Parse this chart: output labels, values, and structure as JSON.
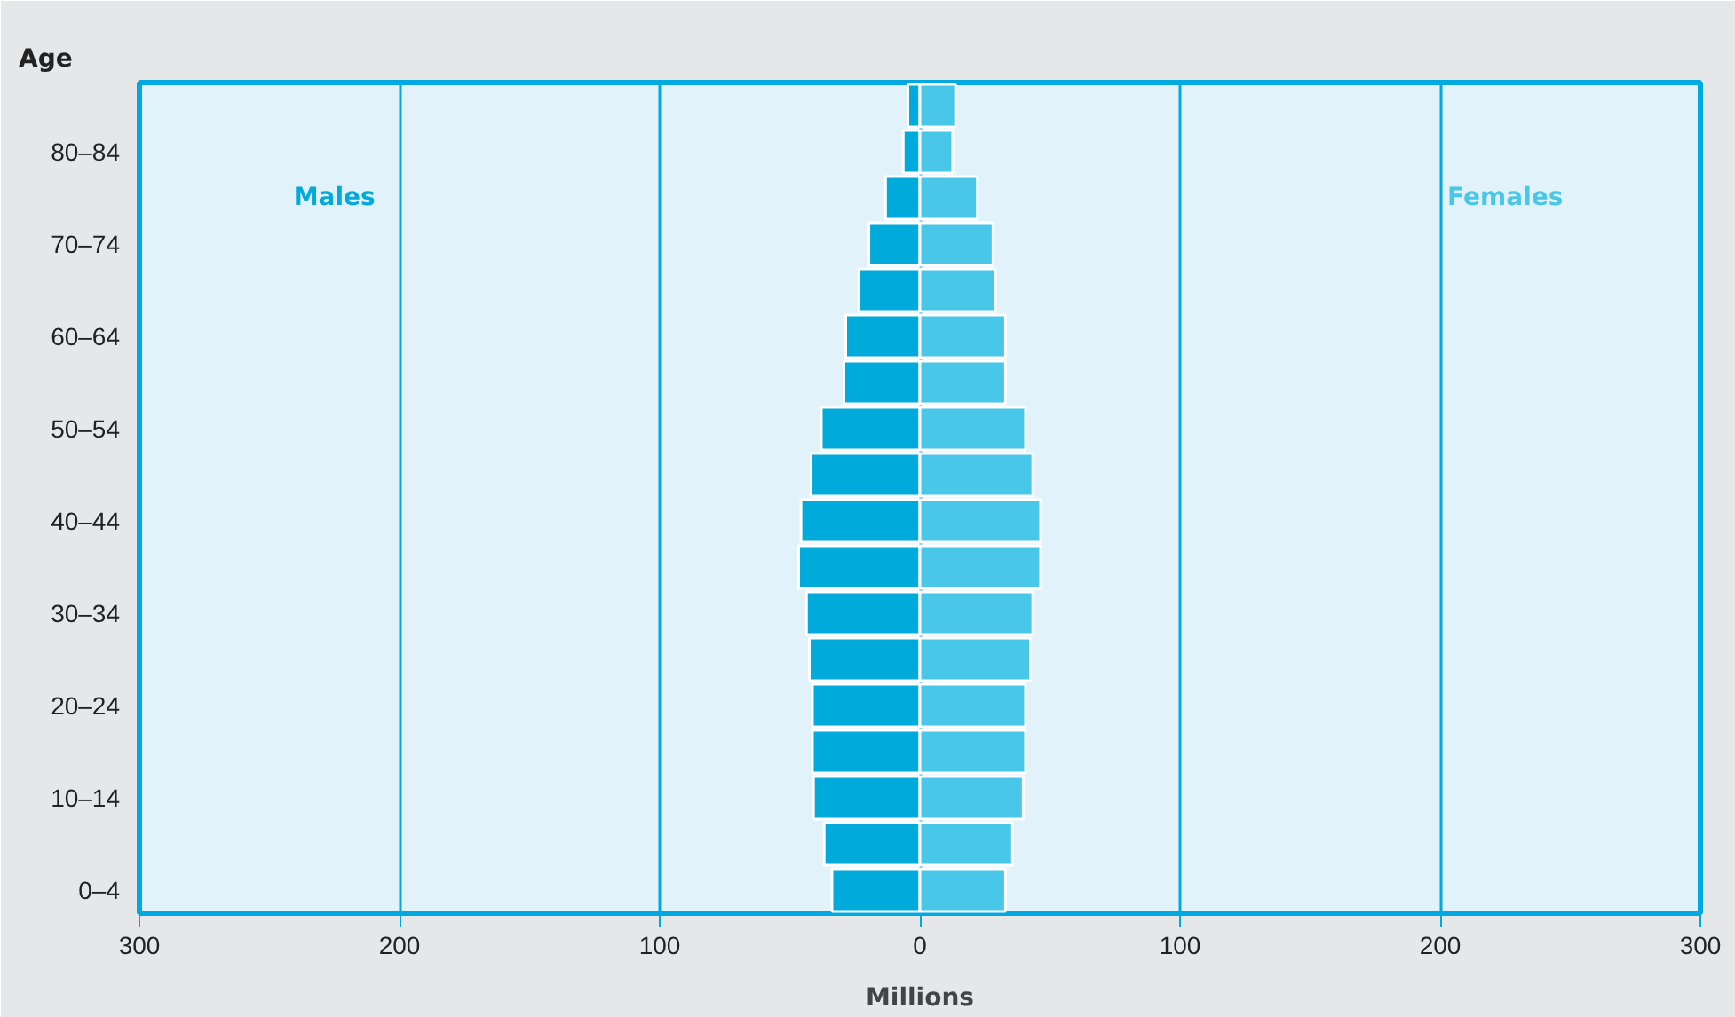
{
  "chart_data": {
    "type": "bar",
    "orientation": "horizontal",
    "stacked": true,
    "xlabel": "Millions",
    "ylabel": "Age",
    "categories": [
      null,
      "80–84",
      null,
      "70–74",
      null,
      "60–64",
      null,
      "50–54",
      null,
      "40–44",
      null,
      "30–34",
      null,
      "20–24",
      null,
      "10–14",
      null,
      "0–4"
    ],
    "series": [
      {
        "name": "Males",
        "color": "#00abdc",
        "values": [
          -4.6,
          -6.4,
          -13.2,
          -19.6,
          -23.5,
          -28.5,
          -29.2,
          -37.9,
          -41.8,
          -45.7,
          -46.6,
          -43.6,
          -42.5,
          -41.3,
          -41.3,
          -40.9,
          -36.8,
          -33.8
        ]
      },
      {
        "name": "Females",
        "color": "#48c7e9",
        "values": [
          13.7,
          12.6,
          22.1,
          28.1,
          29.0,
          32.9,
          32.9,
          40.6,
          43.4,
          46.4,
          46.4,
          43.4,
          42.5,
          40.6,
          40.6,
          39.7,
          35.6,
          32.9
        ]
      }
    ],
    "xlim": [
      -300,
      300
    ],
    "xticks": [
      {
        "value": -300,
        "label": "300"
      },
      {
        "value": -200,
        "label": "200"
      },
      {
        "value": -100,
        "label": "100"
      },
      0,
      100,
      200,
      300
    ],
    "grid": "x"
  }
}
